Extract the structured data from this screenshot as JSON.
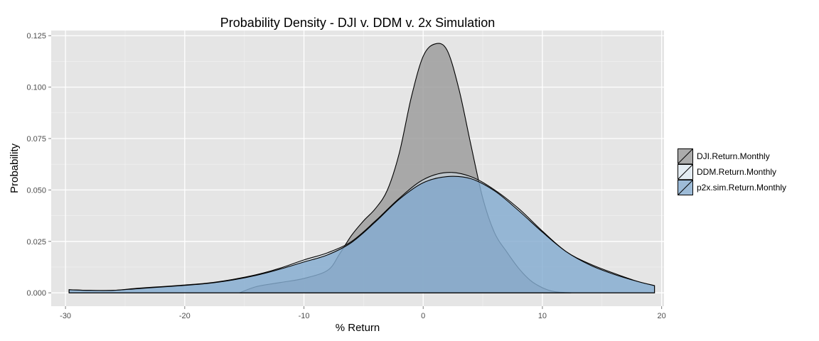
{
  "chart_data": {
    "type": "area",
    "title": "Probability Density - DJI v. DDM v. 2x Simulation",
    "xlabel": "% Return",
    "ylabel": "Probability",
    "xlim": [
      -31.2,
      20.2
    ],
    "ylim": [
      -0.0065,
      0.1275
    ],
    "x_ticks": [
      -30,
      -20,
      -10,
      0,
      10,
      20
    ],
    "x_tick_labels": [
      "-30",
      "-20",
      "-10",
      "0",
      "10",
      "20"
    ],
    "y_ticks": [
      0,
      0.025,
      0.05,
      0.075,
      0.1,
      0.125
    ],
    "y_tick_labels": [
      "0.000",
      "0.025",
      "0.050",
      "0.075",
      "0.100",
      "0.125"
    ],
    "grid": true,
    "legend_position": "right",
    "series": [
      {
        "name": "DJI.Return.Monthly",
        "fill": "#999999",
        "opacity": 0.8,
        "x": [
          -15.4,
          -14,
          -12,
          -10,
          -8,
          -7,
          -6,
          -5,
          -4,
          -3,
          -2,
          -1,
          0,
          1,
          2,
          3,
          4,
          5,
          6,
          7,
          8,
          9,
          10,
          11,
          12.4
        ],
        "y": [
          0,
          0.003,
          0.005,
          0.007,
          0.011,
          0.019,
          0.028,
          0.035,
          0.041,
          0.05,
          0.068,
          0.095,
          0.115,
          0.121,
          0.118,
          0.099,
          0.072,
          0.046,
          0.029,
          0.02,
          0.012,
          0.006,
          0.0025,
          0.0006,
          0
        ]
      },
      {
        "name": "DDM.Return.Monthly",
        "fill": "#d6e6f2",
        "opacity": 0.5,
        "x": [
          -29.7,
          -28,
          -26,
          -24,
          -22,
          -20,
          -18,
          -16,
          -14,
          -12,
          -10,
          -8,
          -6,
          -4,
          -2,
          0,
          2,
          4,
          6,
          8,
          10,
          12,
          14,
          16,
          18,
          19.4
        ],
        "y": [
          0.0015,
          0.0012,
          0.0012,
          0.0022,
          0.003,
          0.0038,
          0.0048,
          0.0065,
          0.0088,
          0.012,
          0.016,
          0.0195,
          0.025,
          0.035,
          0.046,
          0.055,
          0.0585,
          0.0565,
          0.05,
          0.041,
          0.03,
          0.02,
          0.014,
          0.0095,
          0.0055,
          0.0035
        ]
      },
      {
        "name": "p2x.sim.Return.Monthly",
        "fill": "#6f9dc8",
        "opacity": 0.65,
        "x": [
          -29.7,
          -28,
          -26,
          -24,
          -22,
          -20,
          -18,
          -16,
          -14,
          -12,
          -10,
          -8,
          -6,
          -4,
          -2,
          0,
          2,
          4,
          6,
          8,
          10,
          12,
          14,
          16,
          18,
          19.4
        ],
        "y": [
          0.0015,
          0.0012,
          0.0012,
          0.002,
          0.0028,
          0.0036,
          0.0046,
          0.0062,
          0.0085,
          0.0115,
          0.015,
          0.0185,
          0.0245,
          0.0345,
          0.0455,
          0.0535,
          0.0565,
          0.0555,
          0.0495,
          0.04,
          0.0295,
          0.02,
          0.0135,
          0.009,
          0.0055,
          0.0035
        ]
      }
    ]
  }
}
